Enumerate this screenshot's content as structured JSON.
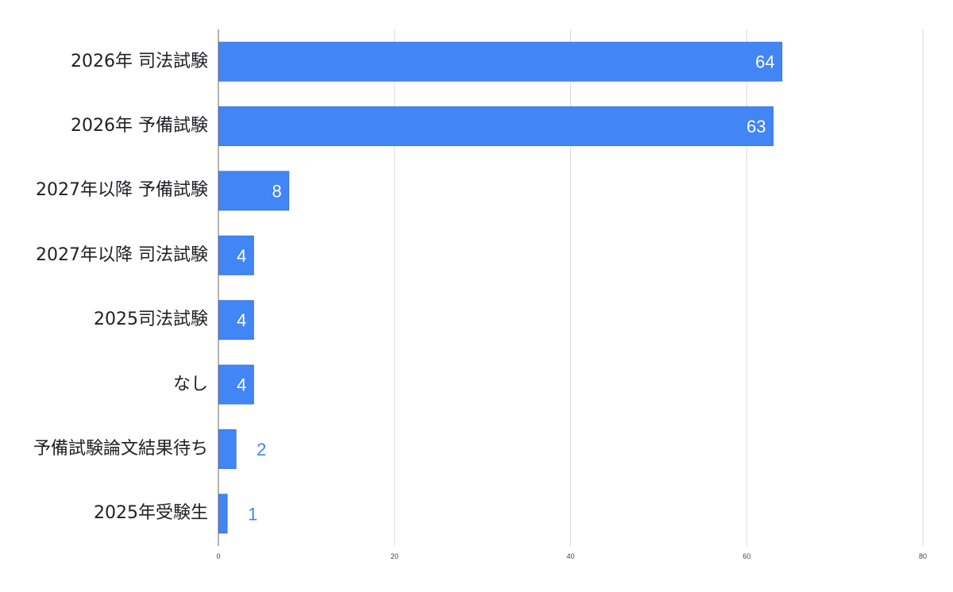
{
  "chart_data": {
    "type": "bar",
    "orientation": "horizontal",
    "categories": [
      "2026年 司法試験",
      "2026年 予備試験",
      "2027年以降 予備試験",
      "2027年以降 司法試験",
      "2025司法試験",
      "なし",
      "予備試験論文結果待ち",
      "2025年受験生"
    ],
    "values": [
      64,
      63,
      8,
      4,
      4,
      4,
      2,
      1
    ],
    "title": "",
    "xlabel": "",
    "ylabel": "",
    "xlim": [
      0,
      80
    ],
    "xticks": [
      "0",
      "20",
      "40",
      "60",
      "80"
    ],
    "grid": true,
    "legend": "none",
    "colors": {
      "bar": "#4285f4",
      "label_inside": "#ffffff",
      "label_outside": "#4285f4",
      "grid": "#d9d9d9",
      "axis": "#666666"
    }
  }
}
